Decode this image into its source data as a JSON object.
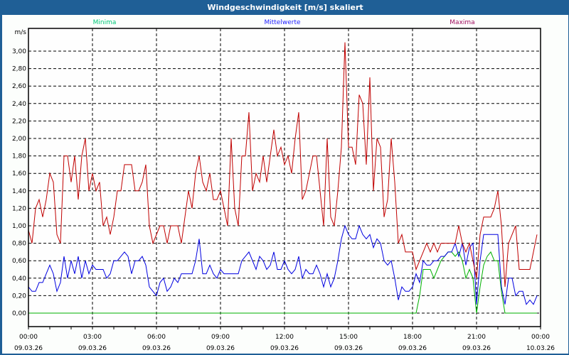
{
  "window": {
    "title": "Windgeschwindigkeit [m/s] skaliert"
  },
  "chart_data": {
    "type": "line",
    "title": "Windgeschwindigkeit [m/s] skaliert",
    "ylabel": "m/s",
    "ylim": [
      0,
      3.0
    ],
    "yticks": [
      "0,00",
      "0,20",
      "0,40",
      "0,60",
      "0,80",
      "1,00",
      "1,20",
      "1,40",
      "1,60",
      "1,80",
      "2,00",
      "2,20",
      "2,40",
      "2,60",
      "2,80",
      "3,00"
    ],
    "xrange_hours": [
      0,
      24
    ],
    "xticks": [
      {
        "time": "00:00",
        "date": "09.03.26"
      },
      {
        "time": "03:00",
        "date": "09.03.26"
      },
      {
        "time": "06:00",
        "date": "09.03.26"
      },
      {
        "time": "09:00",
        "date": "09.03.26"
      },
      {
        "time": "12:00",
        "date": "09.03.26"
      },
      {
        "time": "15:00",
        "date": "09.03.26"
      },
      {
        "time": "18:00",
        "date": "09.03.26"
      },
      {
        "time": "21:00",
        "date": "09.03.26"
      },
      {
        "time": "00:00",
        "date": "10.03.26"
      }
    ],
    "grid": true,
    "legend_position": "top",
    "sample_interval_minutes": 10,
    "series": [
      {
        "name": "Minima",
        "color": "#00b000",
        "legend_color": "#00c878",
        "values": [
          0,
          0,
          0,
          0,
          0,
          0,
          0,
          0,
          0,
          0,
          0,
          0,
          0,
          0,
          0,
          0,
          0,
          0,
          0,
          0,
          0,
          0,
          0,
          0,
          0,
          0,
          0,
          0,
          0,
          0,
          0,
          0,
          0,
          0,
          0,
          0,
          0,
          0,
          0,
          0,
          0,
          0,
          0,
          0,
          0,
          0,
          0,
          0,
          0,
          0,
          0,
          0,
          0,
          0,
          0,
          0,
          0,
          0,
          0,
          0,
          0,
          0,
          0,
          0,
          0,
          0,
          0,
          0,
          0,
          0,
          0,
          0,
          0,
          0,
          0,
          0,
          0,
          0,
          0,
          0,
          0,
          0,
          0,
          0,
          0,
          0,
          0,
          0,
          0,
          0,
          0,
          0,
          0,
          0,
          0,
          0,
          0,
          0,
          0,
          0,
          0,
          0,
          0,
          0,
          0,
          0,
          0,
          0,
          0,
          0,
          0.2,
          0.5,
          0.5,
          0.5,
          0.4,
          0.5,
          0.6,
          0.65,
          0.7,
          0.7,
          0.65,
          0.7,
          0.6,
          0.4,
          0.5,
          0.4,
          0,
          0.3,
          0.55,
          0.65,
          0.7,
          0.6,
          0.6,
          0.25,
          0,
          0,
          0,
          0,
          0,
          0,
          0,
          0,
          0,
          0
        ]
      },
      {
        "name": "Mittelwerte",
        "color": "#0000e0",
        "legend_color": "#2020ff",
        "values": [
          0.3,
          0.25,
          0.25,
          0.35,
          0.35,
          0.45,
          0.55,
          0.45,
          0.25,
          0.35,
          0.65,
          0.4,
          0.6,
          0.45,
          0.65,
          0.4,
          0.6,
          0.45,
          0.55,
          0.5,
          0.5,
          0.5,
          0.4,
          0.45,
          0.6,
          0.6,
          0.65,
          0.7,
          0.65,
          0.45,
          0.6,
          0.6,
          0.65,
          0.55,
          0.3,
          0.25,
          0.2,
          0.35,
          0.4,
          0.25,
          0.3,
          0.4,
          0.35,
          0.45,
          0.45,
          0.45,
          0.45,
          0.6,
          0.85,
          0.45,
          0.45,
          0.55,
          0.45,
          0.4,
          0.5,
          0.45,
          0.45,
          0.45,
          0.45,
          0.45,
          0.6,
          0.65,
          0.7,
          0.6,
          0.5,
          0.65,
          0.6,
          0.5,
          0.55,
          0.7,
          0.5,
          0.5,
          0.6,
          0.5,
          0.45,
          0.5,
          0.65,
          0.4,
          0.5,
          0.45,
          0.45,
          0.55,
          0.45,
          0.3,
          0.45,
          0.3,
          0.4,
          0.6,
          0.85,
          1.0,
          0.9,
          0.85,
          0.85,
          1.0,
          0.9,
          0.85,
          0.9,
          0.75,
          0.85,
          0.8,
          0.6,
          0.55,
          0.6,
          0.4,
          0.15,
          0.3,
          0.25,
          0.25,
          0.3,
          0.45,
          0.35,
          0.6,
          0.55,
          0.55,
          0.6,
          0.6,
          0.65,
          0.65,
          0.7,
          0.7,
          0.8,
          0.65,
          0.8,
          0.55,
          0.75,
          0.8,
          0.1,
          0.6,
          0.9,
          0.9,
          0.9,
          0.9,
          0.9,
          0.3,
          0.1,
          0.4,
          0.4,
          0.2,
          0.25,
          0.25,
          0.1,
          0.15,
          0.1,
          0.2
        ]
      },
      {
        "name": "Maxima",
        "color": "#c00000",
        "legend_color": "#a01060",
        "values": [
          0.95,
          0.8,
          1.2,
          1.3,
          1.1,
          1.3,
          1.6,
          1.5,
          0.9,
          0.8,
          1.8,
          1.8,
          1.5,
          1.8,
          1.3,
          1.8,
          2.0,
          1.4,
          1.6,
          1.4,
          1.5,
          1.0,
          1.1,
          0.9,
          1.1,
          1.4,
          1.4,
          1.7,
          1.7,
          1.7,
          1.4,
          1.4,
          1.5,
          1.7,
          1.0,
          0.8,
          0.9,
          1.0,
          1.0,
          0.8,
          1.0,
          1.0,
          1.0,
          0.8,
          1.1,
          1.4,
          1.2,
          1.6,
          1.8,
          1.5,
          1.4,
          1.6,
          1.3,
          1.3,
          1.4,
          1.2,
          1.0,
          2.0,
          1.2,
          1.0,
          1.8,
          1.8,
          2.3,
          1.4,
          1.6,
          1.5,
          1.8,
          1.5,
          1.8,
          2.1,
          1.8,
          1.9,
          1.7,
          1.8,
          1.6,
          2.0,
          2.3,
          1.3,
          1.4,
          1.6,
          1.8,
          1.8,
          1.4,
          1.0,
          2.0,
          1.1,
          1.0,
          1.4,
          1.9,
          3.1,
          1.9,
          1.9,
          1.7,
          2.5,
          2.4,
          1.7,
          2.7,
          1.4,
          2.0,
          1.9,
          1.1,
          1.3,
          2.0,
          1.5,
          0.8,
          0.9,
          0.7,
          0.7,
          0.7,
          0.5,
          0.6,
          0.7,
          0.8,
          0.7,
          0.8,
          0.7,
          0.8,
          0.8,
          0.8,
          0.8,
          0.8,
          1.0,
          0.8,
          0.7,
          0.8,
          0.6,
          0.4,
          0.9,
          1.1,
          1.1,
          1.1,
          1.2,
          1.4,
          1.0,
          0.3,
          0.8,
          0.9,
          1.0,
          0.5,
          0.5,
          0.5,
          0.5,
          0.7,
          0.9
        ]
      }
    ]
  }
}
